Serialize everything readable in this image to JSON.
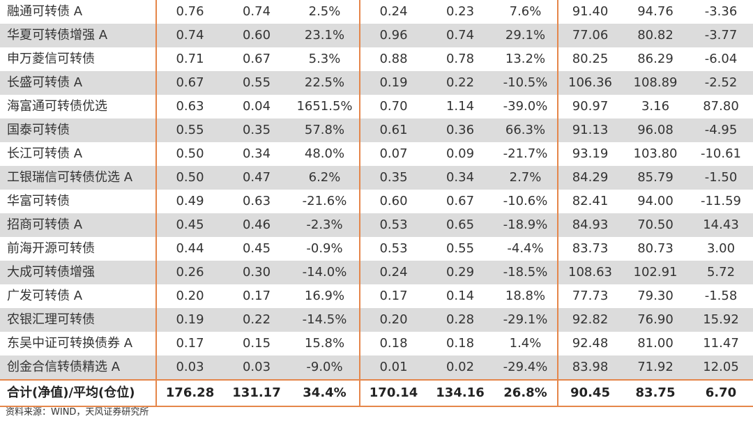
{
  "rows": [
    {
      "name": "融通可转债 A",
      "v": [
        "0.76",
        "0.74",
        "2.5%",
        "0.24",
        "0.23",
        "7.6%",
        "91.40",
        "94.76",
        "-3.36"
      ]
    },
    {
      "name": "华夏可转债增强 A",
      "v": [
        "0.74",
        "0.60",
        "23.1%",
        "0.96",
        "0.74",
        "29.1%",
        "77.06",
        "80.82",
        "-3.77"
      ]
    },
    {
      "name": "申万菱信可转债",
      "v": [
        "0.71",
        "0.67",
        "5.3%",
        "0.88",
        "0.78",
        "13.2%",
        "80.25",
        "86.29",
        "-6.04"
      ]
    },
    {
      "name": "长盛可转债 A",
      "v": [
        "0.67",
        "0.55",
        "22.5%",
        "0.19",
        "0.22",
        "-10.5%",
        "106.36",
        "108.89",
        "-2.52"
      ]
    },
    {
      "name": "海富通可转债优选",
      "v": [
        "0.63",
        "0.04",
        "1651.5%",
        "0.70",
        "1.14",
        "-39.0%",
        "90.97",
        "3.16",
        "87.80"
      ]
    },
    {
      "name": "国泰可转债",
      "v": [
        "0.55",
        "0.35",
        "57.8%",
        "0.61",
        "0.36",
        "66.3%",
        "91.13",
        "96.08",
        "-4.95"
      ]
    },
    {
      "name": "长江可转债 A",
      "v": [
        "0.50",
        "0.34",
        "48.0%",
        "0.07",
        "0.09",
        "-21.7%",
        "93.19",
        "103.80",
        "-10.61"
      ]
    },
    {
      "name": "工银瑞信可转债优选 A",
      "v": [
        "0.50",
        "0.47",
        "6.2%",
        "0.35",
        "0.34",
        "2.7%",
        "84.29",
        "85.79",
        "-1.50"
      ]
    },
    {
      "name": "华富可转债",
      "v": [
        "0.49",
        "0.63",
        "-21.6%",
        "0.60",
        "0.67",
        "-10.6%",
        "82.41",
        "94.00",
        "-11.59"
      ]
    },
    {
      "name": "招商可转债 A",
      "v": [
        "0.45",
        "0.46",
        "-2.3%",
        "0.53",
        "0.65",
        "-18.9%",
        "84.93",
        "70.50",
        "14.43"
      ]
    },
    {
      "name": "前海开源可转债",
      "v": [
        "0.44",
        "0.45",
        "-0.9%",
        "0.53",
        "0.55",
        "-4.4%",
        "83.73",
        "80.73",
        "3.00"
      ]
    },
    {
      "name": "大成可转债增强",
      "v": [
        "0.26",
        "0.30",
        "-14.0%",
        "0.24",
        "0.29",
        "-18.5%",
        "108.63",
        "102.91",
        "5.72"
      ]
    },
    {
      "name": "广发可转债 A",
      "v": [
        "0.20",
        "0.17",
        "16.9%",
        "0.17",
        "0.14",
        "18.8%",
        "77.73",
        "79.30",
        "-1.58"
      ]
    },
    {
      "name": "农银汇理可转债",
      "v": [
        "0.19",
        "0.22",
        "-14.5%",
        "0.20",
        "0.28",
        "-29.1%",
        "92.82",
        "76.90",
        "15.92"
      ]
    },
    {
      "name": "东吴中证可转换债券 A",
      "v": [
        "0.17",
        "0.15",
        "15.8%",
        "0.18",
        "0.18",
        "1.4%",
        "92.48",
        "81.00",
        "11.47"
      ]
    },
    {
      "name": "创金合信转债精选 A",
      "v": [
        "0.03",
        "0.03",
        "-9.0%",
        "0.01",
        "0.02",
        "-29.4%",
        "83.98",
        "71.92",
        "12.05"
      ]
    }
  ],
  "total": {
    "name": "合计(净值)/平均(仓位)",
    "v": [
      "176.28",
      "131.17",
      "34.4%",
      "170.14",
      "134.16",
      "26.8%",
      "90.45",
      "83.75",
      "6.70"
    ]
  },
  "source": "资料来源：WIND，天风证券研究所"
}
